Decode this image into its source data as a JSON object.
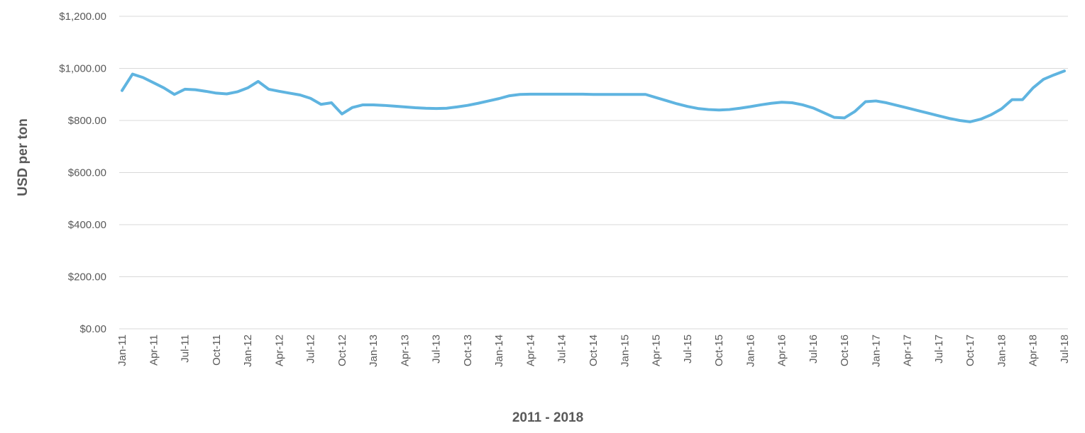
{
  "chart_data": {
    "type": "line",
    "x_label": "2011 - 2018",
    "y_label": "USD per ton",
    "categories": [
      "Jan-11",
      null,
      null,
      "Apr-11",
      null,
      null,
      "Jul-11",
      null,
      null,
      "Oct-11",
      null,
      null,
      "Jan-12",
      null,
      null,
      "Apr-12",
      null,
      null,
      "Jul-12",
      null,
      null,
      "Oct-12",
      null,
      null,
      "Jan-13",
      null,
      null,
      "Apr-13",
      null,
      null,
      "Jul-13",
      null,
      null,
      "Oct-13",
      null,
      null,
      "Jan-14",
      null,
      null,
      "Apr-14",
      null,
      null,
      "Jul-14",
      null,
      null,
      "Oct-14",
      null,
      null,
      "Jan-15",
      null,
      null,
      "Apr-15",
      null,
      null,
      "Jul-15",
      null,
      null,
      "Oct-15",
      null,
      null,
      "Jan-16",
      null,
      null,
      "Apr-16",
      null,
      null,
      "Jul-16",
      null,
      null,
      "Oct-16",
      null,
      null,
      "Jan-17",
      null,
      null,
      "Apr-17",
      null,
      null,
      "Jul-17",
      null,
      null,
      "Oct-17",
      null,
      null,
      "Jan-18",
      null,
      null,
      "Apr-18",
      null,
      null,
      "Jul-18"
    ],
    "series": [
      {
        "color": "#5fb4e0",
        "values": [
          915,
          978,
          965,
          945,
          925,
          900,
          920,
          918,
          912,
          905,
          902,
          910,
          925,
          950,
          920,
          912,
          905,
          898,
          885,
          862,
          868,
          825,
          850,
          860,
          860,
          858,
          855,
          852,
          849,
          847,
          846,
          847,
          852,
          858,
          866,
          875,
          884,
          895,
          900,
          901,
          901,
          901,
          901,
          901,
          901,
          900,
          900,
          900,
          900,
          900,
          900,
          888,
          876,
          864,
          854,
          846,
          842,
          840,
          842,
          847,
          853,
          860,
          866,
          870,
          868,
          860,
          848,
          830,
          812,
          810,
          835,
          872,
          875,
          868,
          858,
          848,
          838,
          828,
          818,
          808,
          800,
          795,
          805,
          822,
          845,
          880,
          880,
          925,
          958,
          975,
          990
        ]
      }
    ],
    "ylim": [
      0,
      1200
    ],
    "yticks": [
      {
        "value": 0,
        "label": "$0.00"
      },
      {
        "value": 200,
        "label": "$200.00"
      },
      {
        "value": 400,
        "label": "$400.00"
      },
      {
        "value": 600,
        "label": "$600.00"
      },
      {
        "value": 800,
        "label": "$800.00"
      },
      {
        "value": 1000,
        "label": "$1,000.00"
      },
      {
        "value": 1200,
        "label": "$1,200.00"
      }
    ],
    "grid": true
  }
}
